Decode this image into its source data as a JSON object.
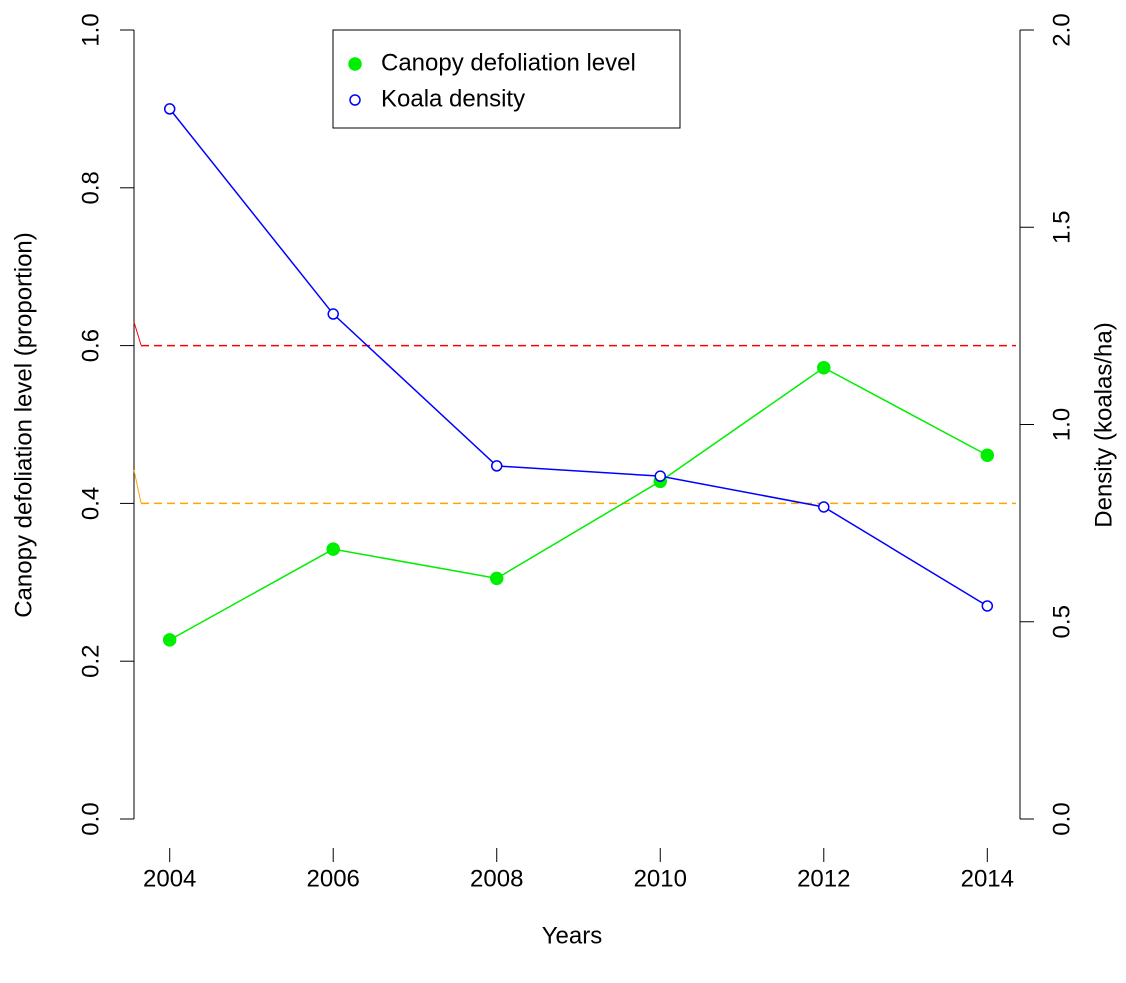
{
  "chart_data": {
    "type": "line",
    "x_label": "Years",
    "y_label": "Canopy defoliation level (proportion)",
    "y2_label": "Density (koalas/ha)",
    "x": [
      2004,
      2006,
      2008,
      2010,
      2012,
      2014
    ],
    "xlim": [
      2003.6,
      2014.4
    ],
    "xticks": [
      2004,
      2006,
      2008,
      2010,
      2012,
      2014
    ],
    "ylim": [
      0,
      1
    ],
    "yticks": [
      {
        "value": 0,
        "label": "0.0"
      },
      0.2,
      0.4,
      0.6,
      0.8,
      {
        "value": 1,
        "label": "1.0"
      }
    ],
    "y2lim": [
      0,
      2
    ],
    "y2ticks": [
      {
        "value": 0,
        "label": "0.0"
      },
      0.5,
      {
        "value": 1,
        "label": "1.0"
      },
      1.5,
      {
        "value": 2,
        "label": "2.0"
      }
    ],
    "series": [
      {
        "name": "Canopy defoliation level",
        "color": "#00ee00",
        "marker": "filled",
        "values": [
          0.227,
          0.342,
          0.305,
          0.428,
          0.572,
          0.461
        ]
      },
      {
        "name": "Koala density",
        "color": "#0000ff",
        "marker": "open",
        "axis": "y2",
        "values": [
          1.8,
          1.28,
          0.895,
          0.869,
          0.791,
          0.54
        ]
      }
    ],
    "reference_lines": [
      {
        "value": 0.6,
        "color": "#ff0000"
      },
      {
        "value": 0.4,
        "color": "#ffa500"
      }
    ],
    "legend": "top"
  }
}
